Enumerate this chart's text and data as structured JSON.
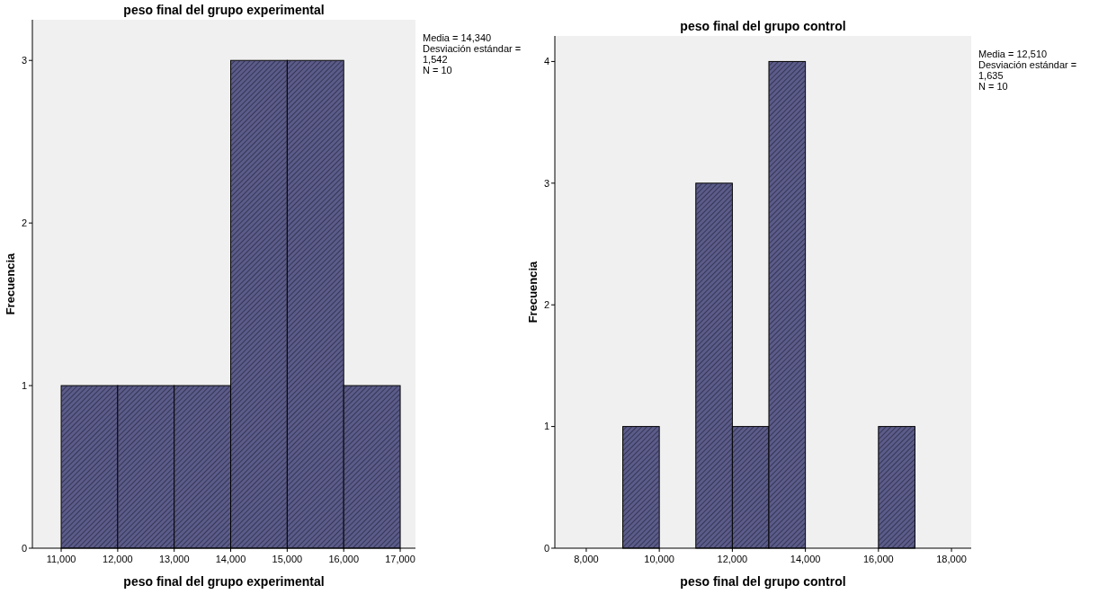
{
  "chart_data": [
    {
      "type": "histogram",
      "title": "peso final del grupo experimental",
      "xlabel": "peso final del grupo experimental",
      "ylabel": "Frecuencia",
      "bins": [
        11000,
        12000,
        13000,
        14000,
        15000,
        16000,
        17000
      ],
      "values": [
        1,
        1,
        1,
        3,
        3,
        1
      ],
      "color": "#5c5c8a",
      "xlim": [
        10490,
        17270
      ],
      "xticks": [
        {
          "value": 11000,
          "label": "11,000"
        },
        {
          "value": 12000,
          "label": "12,000"
        },
        {
          "value": 13000,
          "label": "13,000"
        },
        {
          "value": 14000,
          "label": "14,000"
        },
        {
          "value": 15000,
          "label": "15,000"
        },
        {
          "value": 16000,
          "label": "16,000"
        },
        {
          "value": 17000,
          "label": "17,000"
        }
      ],
      "ylim": [
        0,
        3.25
      ],
      "yticks": [
        0,
        1,
        2,
        3
      ],
      "grid": false,
      "annotations": [
        "Media = 14,340",
        "Desviación estándar = 1,542",
        "N = 10"
      ]
    },
    {
      "type": "histogram",
      "title": "peso final del grupo control",
      "xlabel": "peso final del grupo control",
      "ylabel": "Frecuencia",
      "bins": [
        9000,
        10000,
        11000,
        12000,
        13000,
        14000,
        15000,
        16000,
        17000
      ],
      "values": [
        1,
        0,
        3,
        1,
        4,
        0,
        0,
        1
      ],
      "color": "#5c5c8a",
      "xlim": [
        7140,
        18540
      ],
      "xticks": [
        {
          "value": 8000,
          "label": "8,000"
        },
        {
          "value": 10000,
          "label": "10,000"
        },
        {
          "value": 12000,
          "label": "12,000"
        },
        {
          "value": 14000,
          "label": "14,000"
        },
        {
          "value": 16000,
          "label": "16,000"
        },
        {
          "value": 18000,
          "label": "18,000"
        }
      ],
      "ylim": [
        0,
        4.21
      ],
      "yticks": [
        0,
        1,
        2,
        3,
        4
      ],
      "grid": false,
      "annotations": [
        "Media = 12,510",
        "Desviación estándar = 1,635",
        "N = 10"
      ]
    }
  ]
}
